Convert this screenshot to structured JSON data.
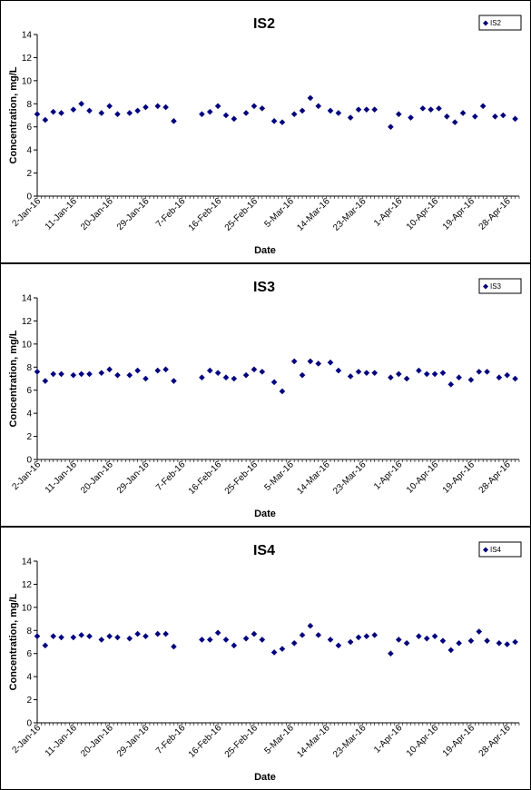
{
  "marker_color": "#00007f",
  "chart_data": [
    {
      "type": "scatter",
      "title": "IS2",
      "xlabel": "Date",
      "ylabel": "Concentration, mg/L",
      "ylim": [
        0,
        14
      ],
      "yticks": [
        "0",
        "2",
        "4",
        "6",
        "8",
        "10",
        "12",
        "14"
      ],
      "xlim": [
        "2016-01-02",
        "2016-05-01"
      ],
      "xtick_labels": [
        "2-Jan-16",
        "11-Jan-16",
        "20-Jan-16",
        "29-Jan-16",
        "7-Feb-16",
        "16-Feb-16",
        "25-Feb-16",
        "5-Mar-16",
        "14-Mar-16",
        "23-Mar-16",
        "1-Apr-16",
        "10-Apr-16",
        "19-Apr-16",
        "28-Apr-16"
      ],
      "xtick_dates": [
        "2016-01-02",
        "2016-01-11",
        "2016-01-20",
        "2016-01-29",
        "2016-02-07",
        "2016-02-16",
        "2016-02-25",
        "2016-03-05",
        "2016-03-14",
        "2016-03-23",
        "2016-04-01",
        "2016-04-10",
        "2016-04-19",
        "2016-04-28"
      ],
      "legend": "top-right",
      "series": [
        {
          "name": "IS2",
          "x": [
            "2016-01-02",
            "2016-01-04",
            "2016-01-06",
            "2016-01-08",
            "2016-01-11",
            "2016-01-13",
            "2016-01-15",
            "2016-01-18",
            "2016-01-20",
            "2016-01-22",
            "2016-01-25",
            "2016-01-27",
            "2016-01-29",
            "2016-02-01",
            "2016-02-03",
            "2016-02-05",
            "2016-02-12",
            "2016-02-14",
            "2016-02-16",
            "2016-02-18",
            "2016-02-20",
            "2016-02-23",
            "2016-02-25",
            "2016-02-27",
            "2016-03-01",
            "2016-03-03",
            "2016-03-06",
            "2016-03-08",
            "2016-03-10",
            "2016-03-12",
            "2016-03-15",
            "2016-03-17",
            "2016-03-20",
            "2016-03-22",
            "2016-03-24",
            "2016-03-26",
            "2016-03-30",
            "2016-04-01",
            "2016-04-04",
            "2016-04-07",
            "2016-04-09",
            "2016-04-11",
            "2016-04-13",
            "2016-04-15",
            "2016-04-17",
            "2016-04-20",
            "2016-04-22",
            "2016-04-25",
            "2016-04-27",
            "2016-04-30"
          ],
          "y": [
            7.1,
            6.6,
            7.3,
            7.2,
            7.5,
            8.0,
            7.4,
            7.2,
            7.8,
            7.1,
            7.2,
            7.4,
            7.7,
            7.8,
            7.7,
            6.5,
            7.1,
            7.3,
            7.8,
            7.0,
            6.7,
            7.2,
            7.8,
            7.6,
            6.5,
            6.4,
            7.1,
            7.4,
            8.5,
            7.8,
            7.4,
            7.2,
            6.8,
            7.5,
            7.5,
            7.5,
            6.0,
            7.1,
            6.8,
            7.6,
            7.5,
            7.6,
            6.9,
            6.4,
            7.2,
            6.9,
            7.8,
            6.9,
            7.0,
            6.7
          ]
        }
      ]
    },
    {
      "type": "scatter",
      "title": "IS3",
      "xlabel": "Date",
      "ylabel": "Concentration, mg/L",
      "ylim": [
        0,
        14
      ],
      "yticks": [
        "0",
        "2",
        "4",
        "6",
        "8",
        "10",
        "12",
        "14"
      ],
      "xlim": [
        "2016-01-02",
        "2016-05-01"
      ],
      "xtick_labels": [
        "2-Jan-16",
        "11-Jan-16",
        "20-Jan-16",
        "29-Jan-16",
        "7-Feb-16",
        "16-Feb-16",
        "25-Feb-16",
        "5-Mar-16",
        "14-Mar-16",
        "23-Mar-16",
        "1-Apr-16",
        "10-Apr-16",
        "19-Apr-16",
        "28-Apr-16"
      ],
      "xtick_dates": [
        "2016-01-02",
        "2016-01-11",
        "2016-01-20",
        "2016-01-29",
        "2016-02-07",
        "2016-02-16",
        "2016-02-25",
        "2016-03-05",
        "2016-03-14",
        "2016-03-23",
        "2016-04-01",
        "2016-04-10",
        "2016-04-19",
        "2016-04-28"
      ],
      "legend": "top-right",
      "series": [
        {
          "name": "IS3",
          "x": [
            "2016-01-02",
            "2016-01-04",
            "2016-01-06",
            "2016-01-08",
            "2016-01-11",
            "2016-01-13",
            "2016-01-15",
            "2016-01-18",
            "2016-01-20",
            "2016-01-22",
            "2016-01-25",
            "2016-01-27",
            "2016-01-29",
            "2016-02-01",
            "2016-02-03",
            "2016-02-05",
            "2016-02-12",
            "2016-02-14",
            "2016-02-16",
            "2016-02-18",
            "2016-02-20",
            "2016-02-23",
            "2016-02-25",
            "2016-02-27",
            "2016-03-01",
            "2016-03-03",
            "2016-03-06",
            "2016-03-08",
            "2016-03-10",
            "2016-03-12",
            "2016-03-15",
            "2016-03-17",
            "2016-03-20",
            "2016-03-22",
            "2016-03-24",
            "2016-03-26",
            "2016-03-30",
            "2016-04-01",
            "2016-04-03",
            "2016-04-06",
            "2016-04-08",
            "2016-04-10",
            "2016-04-12",
            "2016-04-14",
            "2016-04-16",
            "2016-04-19",
            "2016-04-21",
            "2016-04-23",
            "2016-04-26",
            "2016-04-28",
            "2016-04-30"
          ],
          "y": [
            7.6,
            6.8,
            7.4,
            7.4,
            7.3,
            7.4,
            7.4,
            7.5,
            7.8,
            7.3,
            7.3,
            7.7,
            7.0,
            7.7,
            7.8,
            6.8,
            7.1,
            7.7,
            7.5,
            7.1,
            7.0,
            7.3,
            7.8,
            7.6,
            6.7,
            5.9,
            8.5,
            7.3,
            8.5,
            8.3,
            8.4,
            7.7,
            7.2,
            7.6,
            7.5,
            7.5,
            7.1,
            7.4,
            7.0,
            7.7,
            7.4,
            7.4,
            7.5,
            6.5,
            7.1,
            6.9,
            7.6,
            7.6,
            7.1,
            7.3,
            7.0
          ]
        }
      ]
    },
    {
      "type": "scatter",
      "title": "IS4",
      "xlabel": "Date",
      "ylabel": "Concentration, mg/L",
      "ylim": [
        0,
        14
      ],
      "yticks": [
        "0",
        "2",
        "4",
        "6",
        "8",
        "10",
        "12",
        "14"
      ],
      "xlim": [
        "2016-01-02",
        "2016-05-01"
      ],
      "xtick_labels": [
        "2-Jan-16",
        "11-Jan-16",
        "20-Jan-16",
        "29-Jan-16",
        "7-Feb-16",
        "16-Feb-16",
        "25-Feb-16",
        "5-Mar-16",
        "14-Mar-16",
        "23-Mar-16",
        "1-Apr-16",
        "10-Apr-16",
        "19-Apr-16",
        "28-Apr-16"
      ],
      "xtick_dates": [
        "2016-01-02",
        "2016-01-11",
        "2016-01-20",
        "2016-01-29",
        "2016-02-07",
        "2016-02-16",
        "2016-02-25",
        "2016-03-05",
        "2016-03-14",
        "2016-03-23",
        "2016-04-01",
        "2016-04-10",
        "2016-04-19",
        "2016-04-28"
      ],
      "legend": "top-right",
      "series": [
        {
          "name": "IS4",
          "x": [
            "2016-01-02",
            "2016-01-04",
            "2016-01-06",
            "2016-01-08",
            "2016-01-11",
            "2016-01-13",
            "2016-01-15",
            "2016-01-18",
            "2016-01-20",
            "2016-01-22",
            "2016-01-25",
            "2016-01-27",
            "2016-01-29",
            "2016-02-01",
            "2016-02-03",
            "2016-02-05",
            "2016-02-12",
            "2016-02-14",
            "2016-02-16",
            "2016-02-18",
            "2016-02-20",
            "2016-02-23",
            "2016-02-25",
            "2016-02-27",
            "2016-03-01",
            "2016-03-03",
            "2016-03-06",
            "2016-03-08",
            "2016-03-10",
            "2016-03-12",
            "2016-03-15",
            "2016-03-17",
            "2016-03-20",
            "2016-03-22",
            "2016-03-24",
            "2016-03-26",
            "2016-03-30",
            "2016-04-01",
            "2016-04-03",
            "2016-04-06",
            "2016-04-08",
            "2016-04-10",
            "2016-04-12",
            "2016-04-14",
            "2016-04-16",
            "2016-04-19",
            "2016-04-21",
            "2016-04-23",
            "2016-04-26",
            "2016-04-28",
            "2016-04-30"
          ],
          "y": [
            7.5,
            6.7,
            7.5,
            7.4,
            7.4,
            7.6,
            7.5,
            7.2,
            7.5,
            7.4,
            7.3,
            7.7,
            7.5,
            7.7,
            7.7,
            6.6,
            7.2,
            7.2,
            7.8,
            7.2,
            6.7,
            7.3,
            7.7,
            7.2,
            6.1,
            6.4,
            6.9,
            7.6,
            8.4,
            7.6,
            7.2,
            6.7,
            7.0,
            7.4,
            7.5,
            7.6,
            6.0,
            7.2,
            6.9,
            7.5,
            7.3,
            7.5,
            7.1,
            6.3,
            6.9,
            7.1,
            7.9,
            7.1,
            6.9,
            6.8,
            7.0
          ]
        }
      ]
    }
  ]
}
